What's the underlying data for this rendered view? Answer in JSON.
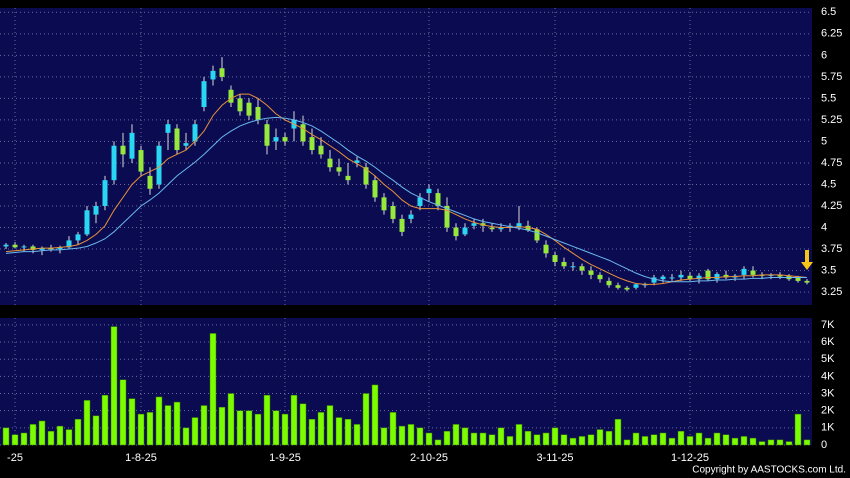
{
  "chart_data": {
    "type": "candlestick",
    "categories": [
      null,
      "-25",
      null,
      null,
      null,
      null,
      null,
      null,
      null,
      null,
      null,
      null,
      null,
      null,
      null,
      "1-8-25",
      null,
      null,
      null,
      null,
      null,
      null,
      null,
      null,
      null,
      null,
      null,
      null,
      null,
      null,
      null,
      "1-9-25",
      null,
      null,
      null,
      null,
      null,
      null,
      null,
      null,
      null,
      null,
      null,
      null,
      null,
      null,
      null,
      "2-10-25",
      null,
      null,
      null,
      null,
      null,
      null,
      null,
      null,
      null,
      null,
      null,
      null,
      null,
      "3-11-25",
      null,
      null,
      null,
      null,
      null,
      null,
      null,
      null,
      null,
      null,
      null,
      null,
      null,
      null,
      "1-12-25",
      null,
      null,
      null,
      null,
      null,
      null,
      null,
      null,
      null,
      null,
      null,
      null,
      null
    ],
    "ohlc": [
      [
        3.78,
        3.82,
        3.75,
        3.8
      ],
      [
        3.8,
        3.83,
        3.76,
        3.77
      ],
      [
        3.77,
        3.8,
        3.72,
        3.78
      ],
      [
        3.78,
        3.8,
        3.7,
        3.74
      ],
      [
        3.74,
        3.78,
        3.68,
        3.76
      ],
      [
        3.76,
        3.8,
        3.72,
        3.75
      ],
      [
        3.75,
        3.79,
        3.7,
        3.77
      ],
      [
        3.77,
        3.9,
        3.75,
        3.85
      ],
      [
        3.85,
        3.95,
        3.8,
        3.92
      ],
      [
        3.92,
        4.25,
        3.9,
        4.2
      ],
      [
        4.15,
        4.3,
        4.05,
        4.25
      ],
      [
        4.25,
        4.6,
        4.2,
        4.55
      ],
      [
        4.55,
        5.0,
        4.5,
        4.95
      ],
      [
        4.95,
        5.1,
        4.7,
        4.85
      ],
      [
        4.8,
        5.2,
        4.75,
        5.1
      ],
      [
        4.9,
        4.95,
        4.6,
        4.65
      ],
      [
        4.6,
        4.7,
        4.38,
        4.45
      ],
      [
        4.5,
        5.0,
        4.45,
        4.95
      ],
      [
        5.1,
        5.25,
        4.9,
        5.2
      ],
      [
        5.15,
        5.2,
        4.85,
        4.9
      ],
      [
        4.95,
        5.1,
        4.9,
        4.98
      ],
      [
        5.0,
        5.25,
        4.95,
        5.2
      ],
      [
        5.4,
        5.75,
        5.35,
        5.7
      ],
      [
        5.72,
        5.88,
        5.65,
        5.82
      ],
      [
        5.85,
        5.98,
        5.7,
        5.75
      ],
      [
        5.6,
        5.65,
        5.4,
        5.45
      ],
      [
        5.5,
        5.55,
        5.3,
        5.35
      ],
      [
        5.45,
        5.5,
        5.25,
        5.3
      ],
      [
        5.4,
        5.5,
        5.2,
        5.25
      ],
      [
        5.2,
        5.25,
        4.85,
        4.95
      ],
      [
        5.0,
        5.15,
        4.9,
        5.05
      ],
      [
        5.05,
        5.1,
        4.95,
        5.0
      ],
      [
        5.15,
        5.35,
        5.0,
        5.25
      ],
      [
        5.2,
        5.3,
        4.95,
        5.0
      ],
      [
        5.05,
        5.15,
        4.85,
        4.9
      ],
      [
        4.95,
        5.05,
        4.8,
        4.85
      ],
      [
        4.8,
        4.9,
        4.65,
        4.7
      ],
      [
        4.7,
        4.8,
        4.6,
        4.65
      ],
      [
        4.6,
        4.75,
        4.5,
        4.55
      ],
      [
        4.75,
        4.82,
        4.7,
        4.78
      ],
      [
        4.7,
        4.75,
        4.45,
        4.5
      ],
      [
        4.55,
        4.6,
        4.3,
        4.35
      ],
      [
        4.35,
        4.4,
        4.15,
        4.2
      ],
      [
        4.25,
        4.3,
        4.05,
        4.1
      ],
      [
        4.1,
        4.15,
        3.9,
        3.95
      ],
      [
        4.1,
        4.2,
        4.05,
        4.15
      ],
      [
        4.25,
        4.4,
        4.2,
        4.35
      ],
      [
        4.4,
        4.5,
        4.3,
        4.45
      ],
      [
        4.4,
        4.45,
        4.2,
        4.25
      ],
      [
        4.25,
        4.35,
        3.95,
        4.0
      ],
      [
        4.0,
        4.05,
        3.85,
        3.9
      ],
      [
        3.92,
        4.05,
        3.9,
        4.0
      ],
      [
        4.02,
        4.1,
        3.98,
        4.05
      ],
      [
        4.05,
        4.1,
        3.95,
        4.02
      ],
      [
        4.0,
        4.05,
        3.95,
        3.98
      ],
      [
        3.98,
        4.05,
        3.95,
        4.0
      ],
      [
        4.0,
        4.05,
        3.95,
        4.02
      ],
      [
        4.0,
        4.25,
        3.97,
        4.05
      ],
      [
        4.02,
        4.08,
        3.95,
        3.97
      ],
      [
        3.98,
        4.0,
        3.82,
        3.85
      ],
      [
        3.8,
        3.85,
        3.65,
        3.7
      ],
      [
        3.68,
        3.72,
        3.55,
        3.6
      ],
      [
        3.6,
        3.65,
        3.52,
        3.55
      ],
      [
        3.55,
        3.6,
        3.5,
        3.55
      ],
      [
        3.55,
        3.58,
        3.45,
        3.5
      ],
      [
        3.5,
        3.55,
        3.4,
        3.45
      ],
      [
        3.45,
        3.48,
        3.36,
        3.4
      ],
      [
        3.38,
        3.42,
        3.3,
        3.33
      ],
      [
        3.33,
        3.36,
        3.28,
        3.3
      ],
      [
        3.3,
        3.32,
        3.26,
        3.28
      ],
      [
        3.3,
        3.35,
        3.28,
        3.34
      ],
      [
        3.33,
        3.36,
        3.3,
        3.34
      ],
      [
        3.36,
        3.45,
        3.33,
        3.42
      ],
      [
        3.4,
        3.45,
        3.36,
        3.43
      ],
      [
        3.42,
        3.46,
        3.38,
        3.42
      ],
      [
        3.42,
        3.5,
        3.38,
        3.45
      ],
      [
        3.44,
        3.48,
        3.38,
        3.4
      ],
      [
        3.4,
        3.47,
        3.35,
        3.44
      ],
      [
        3.5,
        3.52,
        3.38,
        3.4
      ],
      [
        3.4,
        3.48,
        3.36,
        3.46
      ],
      [
        3.45,
        3.5,
        3.4,
        3.42
      ],
      [
        3.42,
        3.46,
        3.38,
        3.44
      ],
      [
        3.45,
        3.55,
        3.4,
        3.52
      ],
      [
        3.5,
        3.55,
        3.42,
        3.45
      ],
      [
        3.45,
        3.48,
        3.4,
        3.44
      ],
      [
        3.44,
        3.47,
        3.4,
        3.45
      ],
      [
        3.45,
        3.48,
        3.4,
        3.43
      ],
      [
        3.44,
        3.46,
        3.38,
        3.4
      ],
      [
        3.42,
        3.44,
        3.36,
        3.38
      ],
      [
        3.38,
        3.4,
        3.34,
        3.36
      ]
    ],
    "up_color": "#2ad6f2",
    "down_color": "#96e83c",
    "series": [
      {
        "color": "#e8923a",
        "values": [
          3.72,
          3.73,
          3.74,
          3.75,
          3.76,
          3.76,
          3.77,
          3.78,
          3.8,
          3.85,
          3.92,
          4.02,
          4.2,
          4.35,
          4.5,
          4.6,
          4.65,
          4.7,
          4.8,
          4.85,
          4.9,
          5.0,
          5.12,
          5.3,
          5.42,
          5.5,
          5.55,
          5.55,
          5.5,
          5.42,
          5.32,
          5.25,
          5.2,
          5.15,
          5.08,
          5.02,
          4.95,
          4.88,
          4.8,
          4.74,
          4.68,
          4.6,
          4.5,
          4.42,
          4.32,
          4.25,
          4.22,
          4.22,
          4.22,
          4.2,
          4.15,
          4.1,
          4.06,
          4.03,
          4.01,
          4.0,
          4.0,
          4.01,
          4.0,
          3.98,
          3.92,
          3.85,
          3.77,
          3.7,
          3.63,
          3.57,
          3.52,
          3.47,
          3.42,
          3.38,
          3.35,
          3.34,
          3.34,
          3.35,
          3.37,
          3.39,
          3.4,
          3.41,
          3.42,
          3.42,
          3.43,
          3.43,
          3.44,
          3.44,
          3.45,
          3.45,
          3.45,
          3.44,
          3.43,
          3.42
        ]
      },
      {
        "color": "#6ab8ee",
        "values": [
          3.7,
          3.71,
          3.72,
          3.72,
          3.73,
          3.74,
          3.74,
          3.75,
          3.76,
          3.78,
          3.82,
          3.87,
          3.95,
          4.05,
          4.15,
          4.25,
          4.32,
          4.4,
          4.5,
          4.6,
          4.68,
          4.76,
          4.85,
          4.95,
          5.05,
          5.12,
          5.18,
          5.22,
          5.25,
          5.27,
          5.28,
          5.27,
          5.25,
          5.22,
          5.18,
          5.12,
          5.05,
          4.98,
          4.9,
          4.83,
          4.77,
          4.7,
          4.62,
          4.55,
          4.47,
          4.4,
          4.35,
          4.3,
          4.26,
          4.22,
          4.18,
          4.14,
          4.1,
          4.07,
          4.05,
          4.03,
          4.01,
          3.99,
          3.97,
          3.94,
          3.9,
          3.86,
          3.82,
          3.78,
          3.74,
          3.7,
          3.66,
          3.62,
          3.57,
          3.52,
          3.47,
          3.43,
          3.4,
          3.38,
          3.37,
          3.37,
          3.37,
          3.38,
          3.38,
          3.39,
          3.39,
          3.4,
          3.4,
          3.41,
          3.41,
          3.42,
          3.42,
          3.42,
          3.42,
          3.42
        ]
      }
    ],
    "ylim": [
      3.1,
      6.55
    ],
    "yticks": [
      3.25,
      3.5,
      3.75,
      4,
      4.25,
      4.5,
      4.75,
      5,
      5.25,
      5.5,
      5.75,
      6,
      6.25,
      6.5
    ],
    "volume": [
      1000,
      600,
      700,
      1200,
      1400,
      800,
      1100,
      900,
      1500,
      2600,
      1700,
      2900,
      6900,
      3800,
      2700,
      1800,
      1900,
      2800,
      2300,
      2500,
      1000,
      1600,
      2300,
      6500,
      2200,
      3000,
      2000,
      2000,
      1800,
      2900,
      2000,
      1800,
      2900,
      2400,
      1500,
      1900,
      2300,
      1600,
      1500,
      1200,
      3000,
      3500,
      1000,
      1900,
      1100,
      1200,
      1000,
      700,
      300,
      800,
      1200,
      1000,
      700,
      700,
      600,
      1000,
      500,
      1200,
      800,
      600,
      700,
      1000,
      600,
      400,
      500,
      600,
      900,
      800,
      1500,
      300,
      700,
      500,
      600,
      700,
      400,
      800,
      500,
      700,
      400,
      700,
      600,
      400,
      500,
      400,
      200,
      300,
      300,
      200,
      1800,
      300
    ],
    "volume_color": "#7cfc00",
    "volume_ylim": [
      0,
      7400
    ],
    "volume_yticks": [
      0,
      {
        "value": 1000,
        "label": "1K"
      },
      {
        "value": 2000,
        "label": "2K"
      },
      {
        "value": 3000,
        "label": "3K"
      },
      {
        "value": 4000,
        "label": "4K"
      },
      {
        "value": 5000,
        "label": "5K"
      },
      {
        "value": 6000,
        "label": "6K"
      },
      {
        "value": 7000,
        "label": "7K"
      }
    ],
    "grid": true,
    "annotation": "Copyright by AASTOCKS.com Ltd."
  }
}
